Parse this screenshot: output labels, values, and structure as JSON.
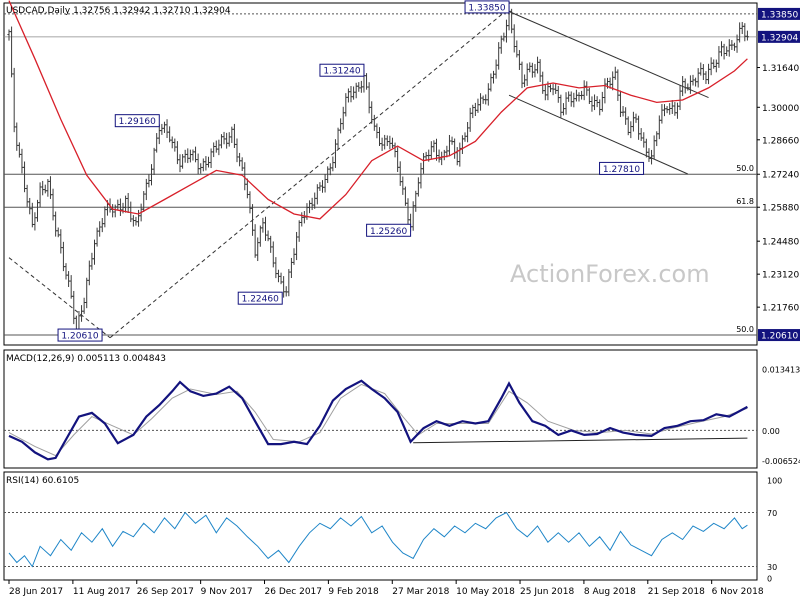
{
  "chart_data": {
    "type": "ohlc",
    "symbol": "USDCAD",
    "timeframe": "Daily",
    "ohlc_header": {
      "open": "1.32756",
      "high": "1.32942",
      "low": "1.32710",
      "close": "1.32904"
    },
    "watermark": "ActionForex.com",
    "colors": {
      "bars": "#3a3a3a",
      "ma": "#d8202a",
      "macd_line": "#13137e",
      "macd_signal": "#a0a0a0",
      "rsi": "#1f86c8",
      "annotation": "#13137e",
      "axis_text": "#000000",
      "hline": "#555555",
      "last_price_bg": "#13137e"
    },
    "x_dates": [
      "28 Jun 2017",
      "11 Aug 2017",
      "26 Sep 2017",
      "9 Nov 2017",
      "26 Dec 2017",
      "9 Feb 2018",
      "27 Mar 2018",
      "10 May 2018",
      "25 Jun 2018",
      "8 Aug 2018",
      "21 Sep 2018",
      "6 Nov 2018"
    ],
    "price_panel": {
      "ylim": [
        1.202,
        1.343
      ],
      "y_ticks": [
        "1.33850",
        "1.32904",
        "1.31640",
        "1.30000",
        "1.28660",
        "1.27240",
        "1.25880",
        "1.24480",
        "1.23120",
        "1.21760",
        "1.20610"
      ],
      "last_price": "1.32904",
      "price_path": [
        [
          0,
          1.33
        ],
        [
          2,
          1.292
        ],
        [
          5,
          1.275
        ],
        [
          9,
          1.25
        ],
        [
          12,
          1.265
        ],
        [
          15,
          1.27
        ],
        [
          18,
          1.25
        ],
        [
          21,
          1.235
        ],
        [
          24,
          1.223
        ],
        [
          26,
          1.209
        ],
        [
          29,
          1.22
        ],
        [
          33,
          1.245
        ],
        [
          37,
          1.258
        ],
        [
          41,
          1.257
        ],
        [
          45,
          1.262
        ],
        [
          49,
          1.25
        ],
        [
          54,
          1.272
        ],
        [
          58,
          1.2916
        ],
        [
          62,
          1.288
        ],
        [
          66,
          1.278
        ],
        [
          70,
          1.28
        ],
        [
          74,
          1.276
        ],
        [
          78,
          1.28
        ],
        [
          82,
          1.286
        ],
        [
          86,
          1.29
        ],
        [
          89,
          1.276
        ],
        [
          92,
          1.265
        ],
        [
          95,
          1.242
        ],
        [
          98,
          1.252
        ],
        [
          101,
          1.24
        ],
        [
          104,
          1.23
        ],
        [
          107,
          1.2246
        ],
        [
          110,
          1.24
        ],
        [
          113,
          1.256
        ],
        [
          116,
          1.26
        ],
        [
          119,
          1.264
        ],
        [
          122,
          1.27
        ],
        [
          125,
          1.28
        ],
        [
          128,
          1.294
        ],
        [
          131,
          1.305
        ],
        [
          134,
          1.308
        ],
        [
          137,
          1.3124
        ],
        [
          139,
          1.3
        ],
        [
          141,
          1.29
        ],
        [
          144,
          1.286
        ],
        [
          147,
          1.287
        ],
        [
          150,
          1.275
        ],
        [
          153,
          1.26
        ],
        [
          155,
          1.2526
        ],
        [
          158,
          1.27
        ],
        [
          161,
          1.28
        ],
        [
          164,
          1.285
        ],
        [
          167,
          1.278
        ],
        [
          170,
          1.285
        ],
        [
          173,
          1.28
        ],
        [
          176,
          1.29
        ],
        [
          179,
          1.298
        ],
        [
          182,
          1.302
        ],
        [
          185,
          1.308
        ],
        [
          188,
          1.318
        ],
        [
          191,
          1.33
        ],
        [
          193,
          1.3385
        ],
        [
          195,
          1.328
        ],
        [
          198,
          1.31
        ],
        [
          201,
          1.315
        ],
        [
          204,
          1.318
        ],
        [
          207,
          1.305
        ],
        [
          210,
          1.308
        ],
        [
          213,
          1.3
        ],
        [
          216,
          1.305
        ],
        [
          219,
          1.302
        ],
        [
          222,
          1.308
        ],
        [
          225,
          1.303
        ],
        [
          228,
          1.3
        ],
        [
          231,
          1.31
        ],
        [
          234,
          1.314
        ],
        [
          236,
          1.3
        ],
        [
          239,
          1.29
        ],
        [
          242,
          1.295
        ],
        [
          245,
          1.285
        ],
        [
          248,
          1.2781
        ],
        [
          251,
          1.295
        ],
        [
          254,
          1.302
        ],
        [
          257,
          1.298
        ],
        [
          260,
          1.308
        ],
        [
          263,
          1.31
        ],
        [
          266,
          1.315
        ],
        [
          269,
          1.312
        ],
        [
          272,
          1.318
        ],
        [
          275,
          1.325
        ],
        [
          278,
          1.323
        ],
        [
          281,
          1.327
        ],
        [
          283,
          1.335
        ],
        [
          285,
          1.329
        ]
      ],
      "moving_average": [
        [
          0,
          1.344
        ],
        [
          10,
          1.32
        ],
        [
          20,
          1.295
        ],
        [
          30,
          1.272
        ],
        [
          40,
          1.258
        ],
        [
          50,
          1.256
        ],
        [
          60,
          1.262
        ],
        [
          70,
          1.268
        ],
        [
          80,
          1.274
        ],
        [
          90,
          1.272
        ],
        [
          100,
          1.262
        ],
        [
          110,
          1.256
        ],
        [
          120,
          1.254
        ],
        [
          130,
          1.264
        ],
        [
          140,
          1.278
        ],
        [
          150,
          1.284
        ],
        [
          160,
          1.278
        ],
        [
          170,
          1.28
        ],
        [
          180,
          1.286
        ],
        [
          190,
          1.298
        ],
        [
          200,
          1.308
        ],
        [
          210,
          1.31
        ],
        [
          220,
          1.308
        ],
        [
          230,
          1.309
        ],
        [
          240,
          1.305
        ],
        [
          250,
          1.302
        ],
        [
          260,
          1.303
        ],
        [
          270,
          1.308
        ],
        [
          280,
          1.315
        ],
        [
          285,
          1.32
        ]
      ],
      "horizontal_lines": [
        {
          "price": 1.3385,
          "label": "",
          "style": "dotted"
        },
        {
          "price": 1.32904,
          "label": "",
          "style": "solid-thin"
        },
        {
          "price": 1.2724,
          "label": "50.0",
          "style": "solid"
        },
        {
          "price": 1.2588,
          "label": "61.8",
          "style": "solid"
        },
        {
          "price": 1.2061,
          "label": "50.0",
          "style": "solid"
        }
      ],
      "trendlines": [
        {
          "from": [
            0,
            1.238
          ],
          "to": [
            39,
            1.205
          ],
          "style": "dashed"
        },
        {
          "from": [
            39,
            1.205
          ],
          "to": [
            191,
            1.339
          ],
          "style": "dashed"
        },
        {
          "from": [
            193,
            1.3395
          ],
          "to": [
            270,
            1.304
          ],
          "style": "solid"
        },
        {
          "from": [
            193,
            1.305
          ],
          "to": [
            262,
            1.2725
          ],
          "style": "solid"
        }
      ],
      "annotations": [
        {
          "label": "1.33850",
          "x": 193,
          "price": 1.3385,
          "anchor": "left"
        },
        {
          "label": "1.31240",
          "x": 137,
          "price": 1.3124,
          "anchor": "left"
        },
        {
          "label": "1.29160",
          "x": 58,
          "price": 1.2916,
          "anchor": "left"
        },
        {
          "label": "1.27810",
          "x": 248,
          "price": 1.2781,
          "anchor": "left"
        },
        {
          "label": "1.25260",
          "x": 155,
          "price": 1.2526,
          "anchor": "left"
        },
        {
          "label": "1.22460",
          "x": 107,
          "price": 1.2246,
          "anchor": "left"
        },
        {
          "label": "1.20610",
          "x": 39,
          "price": 1.2061,
          "anchor": "left"
        }
      ]
    },
    "macd_panel": {
      "title": "MACD(12,26,9) 0.005113 0.004843",
      "ylim": [
        -0.0082,
        0.0175
      ],
      "y_ticks": [
        "0.013413",
        "0.00",
        "-0.006524"
      ],
      "main": [
        [
          0,
          -0.0012
        ],
        [
          5,
          -0.0025
        ],
        [
          10,
          -0.0048
        ],
        [
          15,
          -0.0063
        ],
        [
          18,
          -0.006
        ],
        [
          22,
          -0.002
        ],
        [
          27,
          0.003
        ],
        [
          32,
          0.0038
        ],
        [
          37,
          0.0015
        ],
        [
          42,
          -0.0028
        ],
        [
          48,
          -0.001
        ],
        [
          53,
          0.003
        ],
        [
          58,
          0.0055
        ],
        [
          63,
          0.0085
        ],
        [
          66,
          0.0105
        ],
        [
          70,
          0.0085
        ],
        [
          75,
          0.0075
        ],
        [
          80,
          0.008
        ],
        [
          85,
          0.0095
        ],
        [
          90,
          0.007
        ],
        [
          95,
          0.002
        ],
        [
          100,
          -0.003
        ],
        [
          105,
          -0.003
        ],
        [
          110,
          -0.0025
        ],
        [
          115,
          -0.003
        ],
        [
          120,
          0.001
        ],
        [
          125,
          0.0065
        ],
        [
          130,
          0.009
        ],
        [
          136,
          0.0108
        ],
        [
          140,
          0.009
        ],
        [
          145,
          0.007
        ],
        [
          150,
          0.004
        ],
        [
          155,
          -0.0025
        ],
        [
          160,
          0.0005
        ],
        [
          165,
          0.002
        ],
        [
          170,
          0.001
        ],
        [
          175,
          0.002
        ],
        [
          180,
          0.0015
        ],
        [
          185,
          0.002
        ],
        [
          190,
          0.007
        ],
        [
          193,
          0.0102
        ],
        [
          197,
          0.006
        ],
        [
          202,
          0.002
        ],
        [
          207,
          0.001
        ],
        [
          212,
          -0.001
        ],
        [
          217,
          0.0
        ],
        [
          222,
          -0.001
        ],
        [
          227,
          -0.0008
        ],
        [
          232,
          0.0005
        ],
        [
          237,
          -0.0005
        ],
        [
          242,
          -0.001
        ],
        [
          248,
          -0.0012
        ],
        [
          253,
          0.0005
        ],
        [
          258,
          0.001
        ],
        [
          263,
          0.002
        ],
        [
          268,
          0.0022
        ],
        [
          273,
          0.0035
        ],
        [
          278,
          0.003
        ],
        [
          285,
          0.0051
        ]
      ],
      "signal": [
        [
          0,
          -0.0005
        ],
        [
          10,
          -0.0035
        ],
        [
          18,
          -0.0055
        ],
        [
          25,
          -0.001
        ],
        [
          32,
          0.003
        ],
        [
          40,
          0.001
        ],
        [
          48,
          -0.001
        ],
        [
          55,
          0.0025
        ],
        [
          63,
          0.007
        ],
        [
          70,
          0.009
        ],
        [
          80,
          0.0078
        ],
        [
          88,
          0.0085
        ],
        [
          95,
          0.004
        ],
        [
          102,
          -0.002
        ],
        [
          112,
          -0.0025
        ],
        [
          120,
          -0.0005
        ],
        [
          128,
          0.007
        ],
        [
          136,
          0.01
        ],
        [
          145,
          0.008
        ],
        [
          152,
          0.003
        ],
        [
          158,
          -0.001
        ],
        [
          165,
          0.0015
        ],
        [
          175,
          0.0015
        ],
        [
          185,
          0.0015
        ],
        [
          193,
          0.0085
        ],
        [
          200,
          0.006
        ],
        [
          208,
          0.002
        ],
        [
          218,
          0.0
        ],
        [
          228,
          -0.0005
        ],
        [
          238,
          0.0
        ],
        [
          248,
          -0.0008
        ],
        [
          256,
          0.0005
        ],
        [
          266,
          0.0018
        ],
        [
          276,
          0.003
        ],
        [
          285,
          0.0048
        ]
      ],
      "trendline": {
        "from": [
          156,
          -0.0027
        ],
        "to": [
          285,
          -0.0017
        ]
      }
    },
    "rsi_panel": {
      "title": "RSI(14) 60.6105",
      "ylim": [
        20,
        100
      ],
      "y_ticks": [
        "100",
        "70",
        "30",
        "0"
      ],
      "levels": [
        70,
        30
      ],
      "values": [
        [
          0,
          40
        ],
        [
          3,
          33
        ],
        [
          6,
          38
        ],
        [
          9,
          30
        ],
        [
          12,
          45
        ],
        [
          16,
          38
        ],
        [
          20,
          50
        ],
        [
          24,
          42
        ],
        [
          28,
          55
        ],
        [
          32,
          48
        ],
        [
          36,
          58
        ],
        [
          40,
          45
        ],
        [
          44,
          56
        ],
        [
          48,
          52
        ],
        [
          52,
          62
        ],
        [
          56,
          55
        ],
        [
          60,
          66
        ],
        [
          64,
          58
        ],
        [
          68,
          70
        ],
        [
          72,
          62
        ],
        [
          76,
          68
        ],
        [
          80,
          55
        ],
        [
          84,
          66
        ],
        [
          88,
          60
        ],
        [
          92,
          52
        ],
        [
          96,
          45
        ],
        [
          100,
          36
        ],
        [
          104,
          42
        ],
        [
          108,
          33
        ],
        [
          112,
          45
        ],
        [
          116,
          55
        ],
        [
          120,
          62
        ],
        [
          124,
          58
        ],
        [
          128,
          66
        ],
        [
          132,
          60
        ],
        [
          136,
          67
        ],
        [
          140,
          55
        ],
        [
          144,
          60
        ],
        [
          148,
          48
        ],
        [
          152,
          40
        ],
        [
          156,
          36
        ],
        [
          160,
          50
        ],
        [
          164,
          58
        ],
        [
          168,
          52
        ],
        [
          172,
          60
        ],
        [
          176,
          55
        ],
        [
          180,
          62
        ],
        [
          184,
          58
        ],
        [
          188,
          66
        ],
        [
          192,
          70
        ],
        [
          196,
          58
        ],
        [
          200,
          52
        ],
        [
          204,
          60
        ],
        [
          208,
          48
        ],
        [
          212,
          55
        ],
        [
          216,
          48
        ],
        [
          220,
          55
        ],
        [
          224,
          45
        ],
        [
          228,
          52
        ],
        [
          232,
          42
        ],
        [
          236,
          56
        ],
        [
          240,
          46
        ],
        [
          244,
          42
        ],
        [
          248,
          38
        ],
        [
          252,
          50
        ],
        [
          256,
          55
        ],
        [
          260,
          50
        ],
        [
          264,
          60
        ],
        [
          268,
          56
        ],
        [
          272,
          62
        ],
        [
          276,
          58
        ],
        [
          280,
          66
        ],
        [
          283,
          58
        ],
        [
          285,
          60.6
        ]
      ]
    }
  }
}
